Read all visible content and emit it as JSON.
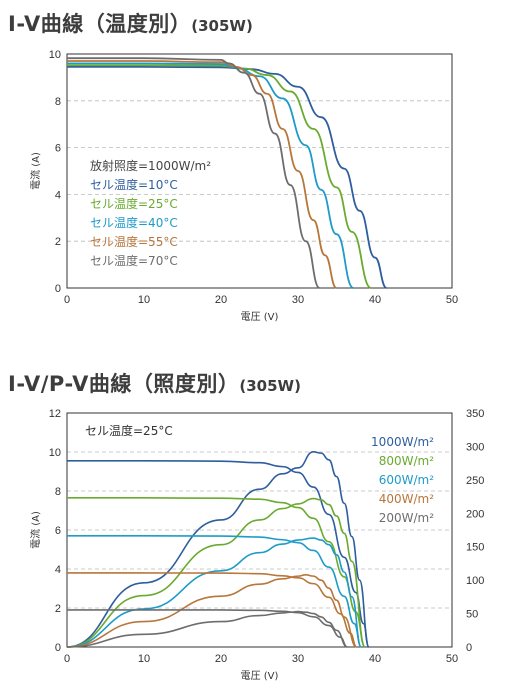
{
  "titles": {
    "chart1_main": "I-V曲線（温度別）",
    "chart1_sub": "(305W)",
    "chart2_main": "I-V/P-V曲線（照度別）",
    "chart2_sub": "(305W)"
  },
  "colors": {
    "blue": "#2e5e9e",
    "green": "#6aaa2f",
    "cyan": "#1e9bc8",
    "brown": "#b8763a",
    "gray": "#6d6d6d",
    "grid": "#bbbbbb"
  },
  "chart_data": [
    {
      "type": "line",
      "title": "I-V曲線（温度別）(305W)",
      "xlabel": "電圧 (V)",
      "ylabel": "電流 (A)",
      "xlim": [
        0,
        50
      ],
      "ylim": [
        0,
        10
      ],
      "xticks": [
        0,
        10,
        20,
        30,
        40,
        50
      ],
      "yticks": [
        0,
        2,
        4,
        6,
        8,
        10
      ],
      "legend_header": "放射照度=1000W/m²",
      "series": [
        {
          "name": "セル温度=10°C",
          "color": "blue",
          "x": [
            0,
            10,
            20,
            24,
            27,
            30,
            33,
            36,
            38,
            40,
            41.5
          ],
          "y": [
            9.45,
            9.45,
            9.43,
            9.35,
            9.15,
            8.6,
            7.3,
            5.1,
            3.3,
            1.3,
            0
          ]
        },
        {
          "name": "セル温度=25°C",
          "color": "green",
          "x": [
            0,
            10,
            20,
            23,
            26,
            29,
            32,
            35,
            37,
            39.5
          ],
          "y": [
            9.52,
            9.52,
            9.5,
            9.38,
            9.1,
            8.4,
            6.8,
            4.3,
            2.4,
            0
          ]
        },
        {
          "name": "セル温度=40°C",
          "color": "cyan",
          "x": [
            0,
            10,
            20,
            22,
            25,
            28,
            31,
            33,
            35,
            37.2
          ],
          "y": [
            9.6,
            9.6,
            9.57,
            9.42,
            9.05,
            8.1,
            6.1,
            4.2,
            2.3,
            0
          ]
        },
        {
          "name": "セル温度=55°C",
          "color": "brown",
          "x": [
            0,
            10,
            20,
            22,
            24,
            26,
            28,
            30,
            32,
            33.5,
            35
          ],
          "y": [
            9.7,
            9.7,
            9.65,
            9.45,
            9.1,
            8.3,
            6.8,
            5.0,
            2.9,
            1.4,
            0
          ]
        },
        {
          "name": "セル温度=70°C",
          "color": "gray",
          "x": [
            0,
            10,
            20,
            21,
            23,
            25,
            27,
            29,
            31,
            32.8
          ],
          "y": [
            9.82,
            9.82,
            9.75,
            9.6,
            9.2,
            8.3,
            6.6,
            4.4,
            2.0,
            0
          ]
        }
      ]
    },
    {
      "type": "line",
      "title": "I-V/P-V曲線（照度別）(305W)",
      "xlabel": "電圧 (V)",
      "ylabel": "電流 (A)",
      "xlim": [
        0,
        50
      ],
      "ylim": [
        0,
        12
      ],
      "y2lim": [
        0,
        350
      ],
      "xticks": [
        0,
        10,
        20,
        30,
        40,
        50
      ],
      "yticks": [
        0,
        2,
        4,
        6,
        8,
        10,
        12
      ],
      "y2ticks": [
        0,
        50,
        100,
        150,
        200,
        250,
        300,
        350
      ],
      "annotation": "セル温度=25°C",
      "series": [
        {
          "name": "1000W/m²",
          "color": "blue",
          "iv_x": [
            0,
            10,
            20,
            25,
            28,
            30,
            32,
            34,
            36,
            37.5,
            38.5,
            39.2
          ],
          "iv_y": [
            9.55,
            9.55,
            9.53,
            9.45,
            9.25,
            8.95,
            8.2,
            6.8,
            4.6,
            2.8,
            1.2,
            0
          ],
          "pv_x": [
            0,
            10,
            20,
            25,
            28,
            30,
            32,
            33,
            34,
            35,
            36,
            37,
            38,
            39.2
          ],
          "pv_y": [
            0,
            96,
            190,
            236,
            259,
            268,
            292,
            290,
            280,
            255,
            215,
            165,
            100,
            0
          ]
        },
        {
          "name": "800W/m²",
          "color": "green",
          "iv_x": [
            0,
            10,
            20,
            25,
            28,
            30,
            32,
            34,
            36,
            37.5,
            38.7
          ],
          "iv_y": [
            7.65,
            7.65,
            7.63,
            7.58,
            7.4,
            7.15,
            6.6,
            5.4,
            3.6,
            1.8,
            0
          ],
          "pv_x": [
            0,
            10,
            20,
            25,
            28,
            30,
            32,
            33,
            34,
            35,
            36,
            37,
            38.7
          ],
          "pv_y": [
            0,
            77,
            153,
            190,
            207,
            214,
            222,
            220,
            213,
            196,
            170,
            128,
            0
          ]
        },
        {
          "name": "600W/m²",
          "color": "cyan",
          "iv_x": [
            0,
            10,
            20,
            25,
            28,
            30,
            32,
            34,
            36,
            37.3,
            38.2
          ],
          "iv_y": [
            5.7,
            5.7,
            5.69,
            5.64,
            5.5,
            5.35,
            4.95,
            4.1,
            2.6,
            1.2,
            0
          ],
          "pv_x": [
            0,
            10,
            20,
            25,
            28,
            30,
            32,
            33,
            34,
            35,
            36,
            37,
            38.2
          ],
          "pv_y": [
            0,
            57,
            114,
            141,
            154,
            160,
            163,
            160,
            153,
            138,
            112,
            75,
            0
          ]
        },
        {
          "name": "400W/m²",
          "color": "brown",
          "iv_x": [
            0,
            10,
            20,
            25,
            28,
            30,
            32,
            34,
            35.5,
            36.8,
            37.6
          ],
          "iv_y": [
            3.8,
            3.8,
            3.79,
            3.76,
            3.65,
            3.55,
            3.25,
            2.55,
            1.7,
            0.7,
            0
          ],
          "pv_x": [
            0,
            10,
            20,
            25,
            28,
            30,
            31,
            32,
            33,
            34,
            35,
            36,
            37.6
          ],
          "pv_y": [
            0,
            38,
            76,
            94,
            102,
            106,
            108,
            106,
            100,
            88,
            70,
            45,
            0
          ]
        },
        {
          "name": "200W/m²",
          "color": "gray",
          "iv_x": [
            0,
            10,
            20,
            25,
            28,
            30,
            32,
            34,
            35.5,
            36.4
          ],
          "iv_y": [
            1.9,
            1.9,
            1.9,
            1.88,
            1.83,
            1.76,
            1.55,
            1.1,
            0.5,
            0
          ],
          "pv_x": [
            0,
            10,
            20,
            25,
            28,
            29,
            30,
            31,
            32,
            33,
            34,
            35,
            36.4
          ],
          "pv_y": [
            0,
            19,
            38,
            47,
            51,
            52,
            53,
            52,
            50,
            45,
            37,
            25,
            0
          ]
        }
      ]
    }
  ]
}
